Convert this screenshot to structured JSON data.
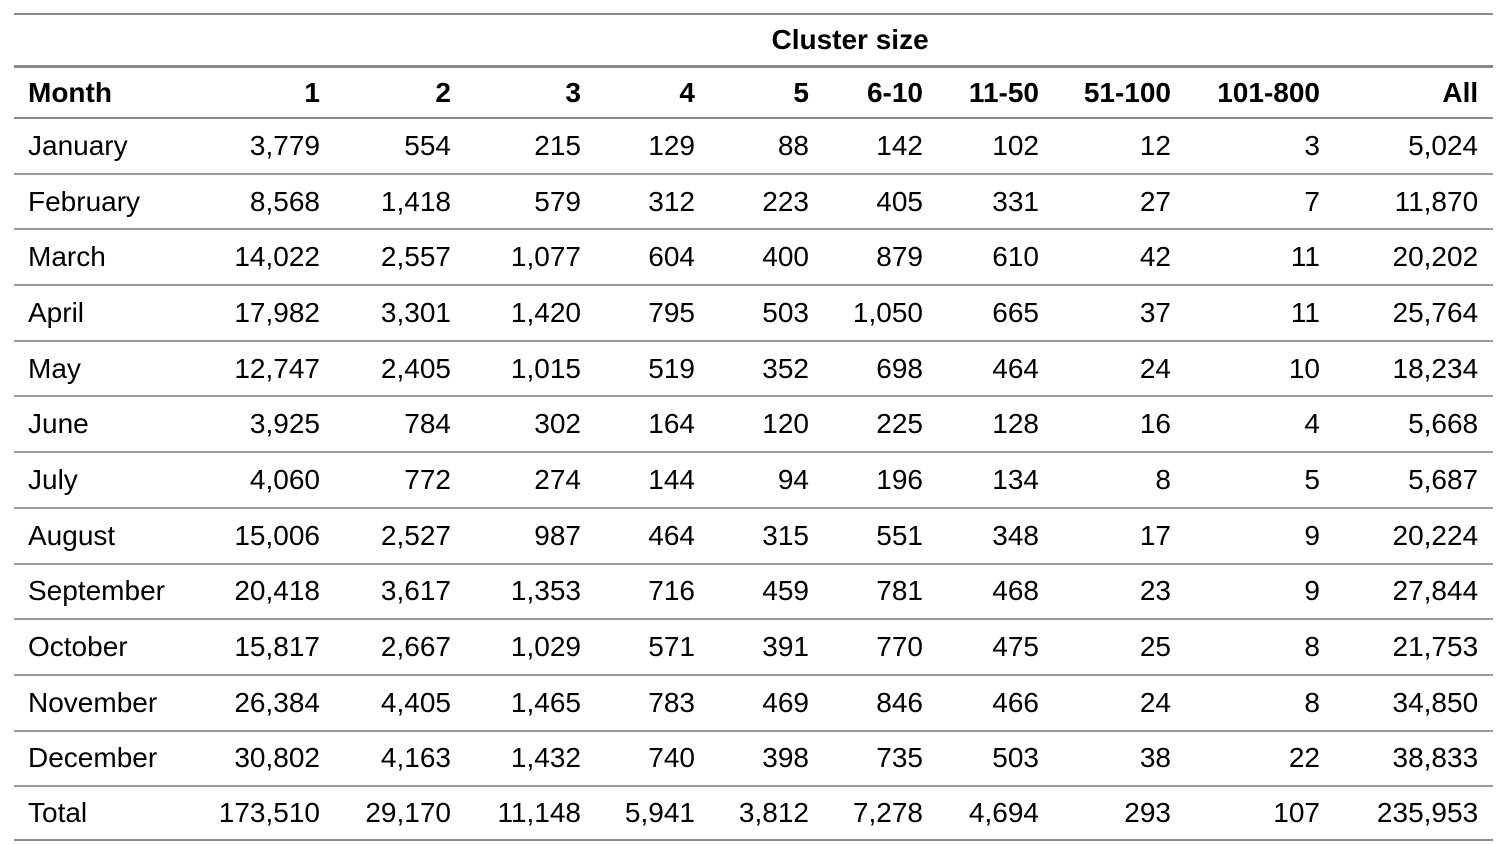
{
  "table": {
    "spanner_label": "Cluster size",
    "headers": [
      "Month",
      "1",
      "2",
      "3",
      "4",
      "5",
      "6-10",
      "11-50",
      "51-100",
      "101-800",
      "All"
    ],
    "rows": [
      [
        "January",
        "3,779",
        "554",
        "215",
        "129",
        "88",
        "142",
        "102",
        "12",
        "3",
        "5,024"
      ],
      [
        "February",
        "8,568",
        "1,418",
        "579",
        "312",
        "223",
        "405",
        "331",
        "27",
        "7",
        "11,870"
      ],
      [
        "March",
        "14,022",
        "2,557",
        "1,077",
        "604",
        "400",
        "879",
        "610",
        "42",
        "11",
        "20,202"
      ],
      [
        "April",
        "17,982",
        "3,301",
        "1,420",
        "795",
        "503",
        "1,050",
        "665",
        "37",
        "11",
        "25,764"
      ],
      [
        "May",
        "12,747",
        "2,405",
        "1,015",
        "519",
        "352",
        "698",
        "464",
        "24",
        "10",
        "18,234"
      ],
      [
        "June",
        "3,925",
        "784",
        "302",
        "164",
        "120",
        "225",
        "128",
        "16",
        "4",
        "5,668"
      ],
      [
        "July",
        "4,060",
        "772",
        "274",
        "144",
        "94",
        "196",
        "134",
        "8",
        "5",
        "5,687"
      ],
      [
        "August",
        "15,006",
        "2,527",
        "987",
        "464",
        "315",
        "551",
        "348",
        "17",
        "9",
        "20,224"
      ],
      [
        "September",
        "20,418",
        "3,617",
        "1,353",
        "716",
        "459",
        "781",
        "468",
        "23",
        "9",
        "27,844"
      ],
      [
        "October",
        "15,817",
        "2,667",
        "1,029",
        "571",
        "391",
        "770",
        "475",
        "25",
        "8",
        "21,753"
      ],
      [
        "November",
        "26,384",
        "4,405",
        "1,465",
        "783",
        "469",
        "846",
        "466",
        "24",
        "8",
        "34,850"
      ],
      [
        "December",
        "30,802",
        "4,163",
        "1,432",
        "740",
        "398",
        "735",
        "503",
        "38",
        "22",
        "38,833"
      ]
    ],
    "total": [
      "Total",
      "173,510",
      "29,170",
      "11,148",
      "5,941",
      "3,812",
      "7,278",
      "4,694",
      "293",
      "107",
      "235,953"
    ]
  }
}
